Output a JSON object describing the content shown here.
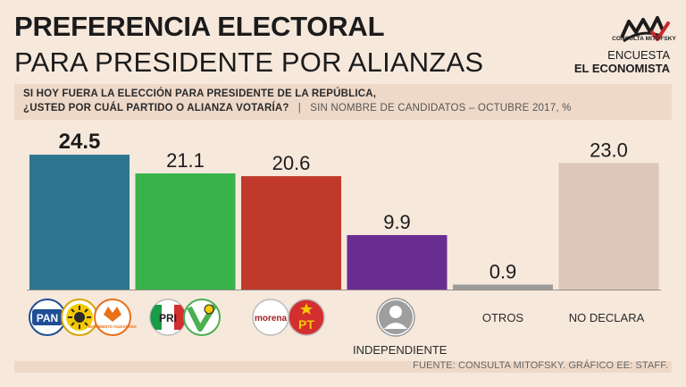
{
  "header": {
    "title_line1": "PREFERENCIA ELECTORAL",
    "title_line2": "PARA PRESIDENTE POR ALIANZAS",
    "logo_text": "CONSULTA MITOFSKY",
    "encuesta_line1": "ENCUESTA",
    "encuesta_line2": "EL ECONOMISTA"
  },
  "question": {
    "line1": "SI HOY FUERA LA ELECCIÓN PARA PRESIDENTE DE LA REPÚBLICA,",
    "line2": "¿USTED POR CUÁL PARTIDO O ALIANZA VOTARÍA?",
    "note": "SIN NOMBRE DE CANDIDATOS – OCTUBRE 2017, %"
  },
  "chart_data": {
    "type": "bar",
    "title": "PREFERENCIA ELECTORAL PARA PRESIDENTE POR ALIANZAS",
    "categories": [
      "PAN-PRD-MC",
      "PRI-PVEM",
      "MORENA-PT",
      "INDEPENDIENTE",
      "OTROS",
      "NO DECLARA"
    ],
    "values": [
      24.5,
      21.1,
      20.6,
      9.9,
      0.9,
      23.0
    ],
    "value_labels": [
      "24.5",
      "21.1",
      "20.6",
      "9.9",
      "0.9",
      "23.0"
    ],
    "bar_colors": [
      "#2d7590",
      "#37b34a",
      "#c0392b",
      "#6a2d91",
      "#9b9b9b",
      "#dcc7b8"
    ],
    "ylim": [
      0,
      25
    ],
    "xlabel": "",
    "ylabel": "%",
    "grid": false,
    "legend": "none"
  },
  "party_logos": {
    "pan": "PAN",
    "mc": "MOVIMIENTO CIUDADANO",
    "pri": "PRI",
    "morena": "morena",
    "pt": "PT"
  },
  "text_labels": {
    "independiente": "INDEPENDIENTE",
    "otros": "OTROS",
    "no_declara": "NO DECLARA"
  },
  "footer": {
    "source": "FUENTE: CONSULTA MITOFSKY. GRÁFICO EE: STAFF."
  }
}
